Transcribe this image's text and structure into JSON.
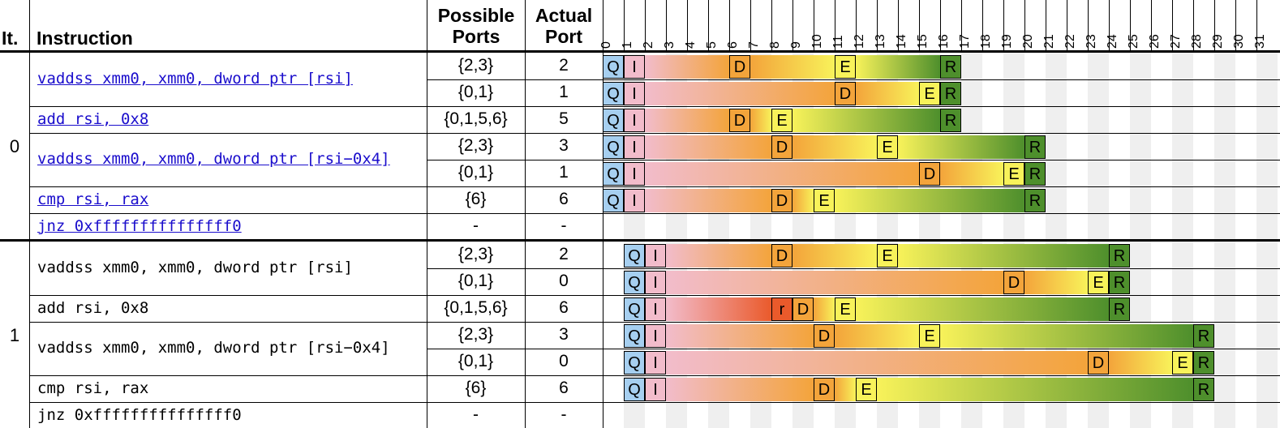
{
  "headers": {
    "iteration": "It.",
    "instruction": "Instruction",
    "possible_ports": [
      "Possible",
      "Ports"
    ],
    "actual_port": [
      "Actual",
      "Port"
    ]
  },
  "cycles": [
    "0",
    "1",
    "2",
    "3",
    "4",
    "5",
    "6",
    "7",
    "8",
    "9",
    "10",
    "11",
    "12",
    "13",
    "14",
    "15",
    "16",
    "17",
    "18",
    "19",
    "20",
    "21",
    "22",
    "23",
    "24",
    "25",
    "26",
    "27",
    "28",
    "29",
    "30",
    "31"
  ],
  "colors": {
    "queue": "#a6cff0",
    "issue": "#f2bccb",
    "ready": "#ea5a2b",
    "dispatch": "#f3a43b",
    "execute": "#f8f25a",
    "retire": "#4e8f2c",
    "link": "#1a0dcc"
  },
  "iterations": [
    {
      "label": "0",
      "instructions": [
        {
          "text": "vaddss xmm0, xmm0, dword ptr [rsi]",
          "link": true,
          "uops": [
            {
              "possible": "{2,3}",
              "actual": "2",
              "q": 0,
              "i": 1,
              "d": 6,
              "e": 11,
              "r": 16
            },
            {
              "possible": "{0,1}",
              "actual": "1",
              "q": 0,
              "i": 1,
              "d": 11,
              "e": 15,
              "r": 16
            }
          ]
        },
        {
          "text": "add rsi, 0x8",
          "link": true,
          "uops": [
            {
              "possible": "{0,1,5,6}",
              "actual": "5",
              "q": 0,
              "i": 1,
              "d": 6,
              "e": 8,
              "r": 16
            }
          ]
        },
        {
          "text": "vaddss xmm0, xmm0, dword ptr [rsi−0x4]",
          "link": true,
          "uops": [
            {
              "possible": "{2,3}",
              "actual": "3",
              "q": 0,
              "i": 1,
              "d": 8,
              "e": 13,
              "r": 20
            },
            {
              "possible": "{0,1}",
              "actual": "1",
              "q": 0,
              "i": 1,
              "d": 15,
              "e": 19,
              "r": 20
            }
          ]
        },
        {
          "text": "cmp rsi, rax",
          "link": true,
          "uops": [
            {
              "possible": "{6}",
              "actual": "6",
              "q": 0,
              "i": 1,
              "d": 8,
              "e": 10,
              "r": 20
            }
          ]
        },
        {
          "text": "jnz 0xfffffffffffffff0",
          "link": true,
          "uops": [
            {
              "possible": "-",
              "actual": "-"
            }
          ]
        }
      ]
    },
    {
      "label": "1",
      "instructions": [
        {
          "text": "vaddss xmm0, xmm0, dword ptr [rsi]",
          "link": false,
          "uops": [
            {
              "possible": "{2,3}",
              "actual": "2",
              "q": 1,
              "i": 2,
              "d": 8,
              "e": 13,
              "r": 24
            },
            {
              "possible": "{0,1}",
              "actual": "0",
              "q": 1,
              "i": 2,
              "d": 19,
              "e": 23,
              "r": 24
            }
          ]
        },
        {
          "text": "add rsi, 0x8",
          "link": false,
          "uops": [
            {
              "possible": "{0,1,5,6}",
              "actual": "6",
              "q": 1,
              "i": 2,
              "rd": 8,
              "d": 9,
              "e": 11,
              "r": 24
            }
          ]
        },
        {
          "text": "vaddss xmm0, xmm0, dword ptr [rsi−0x4]",
          "link": false,
          "uops": [
            {
              "possible": "{2,3}",
              "actual": "3",
              "q": 1,
              "i": 2,
              "d": 10,
              "e": 15,
              "r": 28
            },
            {
              "possible": "{0,1}",
              "actual": "0",
              "q": 1,
              "i": 2,
              "d": 23,
              "e": 27,
              "r": 28
            }
          ]
        },
        {
          "text": "cmp rsi, rax",
          "link": false,
          "uops": [
            {
              "possible": "{6}",
              "actual": "6",
              "q": 1,
              "i": 2,
              "d": 10,
              "e": 12,
              "r": 28
            }
          ]
        },
        {
          "text": "jnz 0xfffffffffffffff0",
          "link": false,
          "uops": [
            {
              "possible": "-",
              "actual": "-"
            }
          ]
        }
      ]
    }
  ],
  "event_labels": {
    "q": "Q",
    "i": "I",
    "rd": "r",
    "d": "D",
    "e": "E",
    "r": "R"
  }
}
